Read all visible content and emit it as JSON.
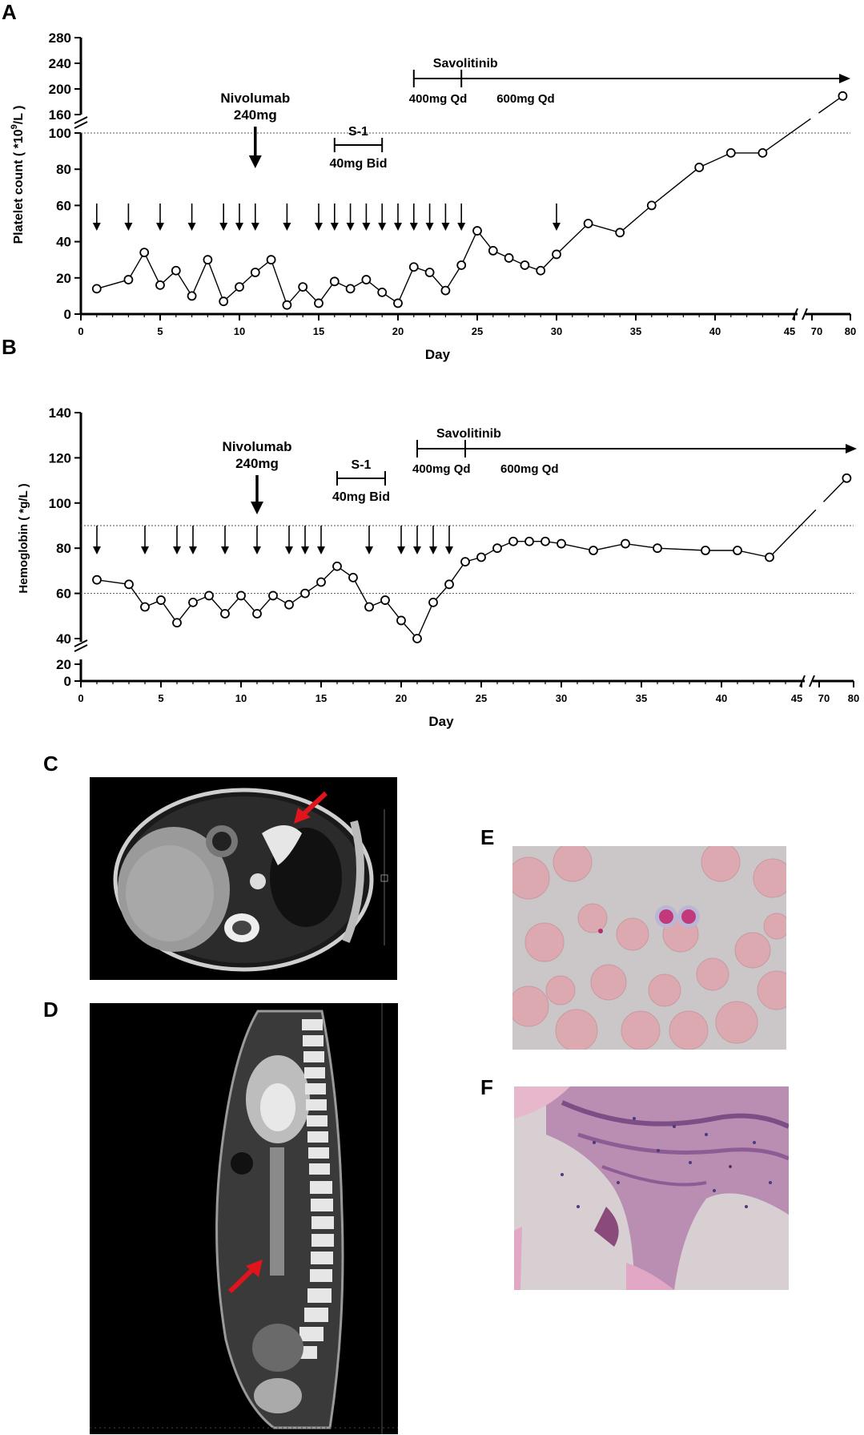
{
  "panels": {
    "a": "A",
    "b": "B",
    "c": "C",
    "d": "D",
    "e": "E",
    "f": "F"
  },
  "icons": {
    "ct_axial": "ct-axial-scan-image",
    "ct_sagittal": "ct-sagittal-scan-image",
    "blood_smear": "blood-smear-micrograph",
    "histology": "histology-micrograph",
    "arrow_color": "#e0141c"
  },
  "chart_data": [
    {
      "type": "line",
      "ylabel_main": "Platelet count ( *10",
      "ylabel_sup": "9",
      "ylabel_end": "/L )",
      "xlabel": "Day",
      "xlim": [
        0,
        80
      ],
      "x_axis_break": "45 // 70",
      "x_ticks": [
        "0",
        "5",
        "10",
        "15",
        "20",
        "25",
        "30",
        "35",
        "40",
        "45",
        "70",
        "80"
      ],
      "ylim_lower": [
        0,
        100
      ],
      "ylim_upper": [
        160,
        280
      ],
      "y_ticks_lower": [
        "0",
        "20",
        "40",
        "60",
        "80",
        "100"
      ],
      "y_ticks_upper": [
        "160",
        "200",
        "240",
        "280"
      ],
      "reference_lines": [
        100
      ],
      "series": [
        {
          "x": [
            1,
            3,
            4,
            5,
            6,
            7,
            8,
            9,
            10,
            11,
            12,
            13,
            14,
            15,
            16,
            17,
            18,
            19,
            20,
            21,
            22,
            23,
            24,
            25,
            26,
            27,
            28,
            29,
            30,
            32,
            34,
            36,
            39,
            41,
            43,
            78
          ],
          "y": [
            14,
            19,
            34,
            16,
            24,
            10,
            30,
            7,
            15,
            23,
            30,
            5,
            15,
            6,
            18,
            14,
            19,
            12,
            6,
            26,
            23,
            13,
            27,
            46,
            35,
            31,
            27,
            24,
            33,
            50,
            45,
            60,
            81,
            89,
            89,
            189
          ]
        }
      ],
      "transfusion_days": [
        1,
        3,
        5,
        7,
        9,
        10,
        11,
        13,
        15,
        16,
        17,
        18,
        19,
        20,
        21,
        22,
        23,
        24,
        30
      ],
      "annotations": {
        "nivolumab": {
          "label1": "Nivolumab",
          "label2": "240mg",
          "day": 11
        },
        "s1": {
          "label1": "S-1",
          "label2": "40mg Bid",
          "start": 16,
          "end": 19
        },
        "savolitinib": {
          "label": "Savolitinib",
          "start": 21,
          "switch": 24,
          "dose1": "400mg Qd",
          "dose2": "600mg Qd"
        }
      }
    },
    {
      "type": "line",
      "ylabel": "Hemoglobin ( *g/L )",
      "xlabel": "Day",
      "xlim": [
        0,
        80
      ],
      "x_axis_break": "45 // 70",
      "x_ticks": [
        "0",
        "5",
        "10",
        "15",
        "20",
        "25",
        "30",
        "35",
        "40",
        "45",
        "70",
        "80"
      ],
      "ylim_lower": [
        0,
        20
      ],
      "ylim_upper": [
        40,
        140
      ],
      "y_ticks_lower": [
        "0",
        "20"
      ],
      "y_ticks_upper": [
        "40",
        "60",
        "80",
        "100",
        "120",
        "140"
      ],
      "reference_lines": [
        60,
        90
      ],
      "series": [
        {
          "x": [
            1,
            3,
            4,
            5,
            6,
            7,
            8,
            9,
            10,
            11,
            12,
            13,
            14,
            15,
            16,
            17,
            18,
            19,
            20,
            21,
            22,
            23,
            24,
            25,
            26,
            27,
            28,
            29,
            30,
            32,
            34,
            36,
            39,
            41,
            43,
            78
          ],
          "y": [
            66,
            64,
            54,
            57,
            47,
            56,
            59,
            51,
            59,
            51,
            59,
            55,
            60,
            65,
            72,
            67,
            54,
            57,
            48,
            40,
            56,
            64,
            74,
            76,
            80,
            83,
            83,
            83,
            82,
            79,
            82,
            80,
            79,
            79,
            76,
            111
          ]
        }
      ],
      "transfusion_days": [
        1,
        4,
        6,
        7,
        9,
        11,
        13,
        14,
        15,
        18,
        20,
        21,
        22,
        23
      ],
      "annotations": {
        "nivolumab": {
          "label1": "Nivolumab",
          "label2": "240mg",
          "day": 11
        },
        "s1": {
          "label1": "S-1",
          "label2": "40mg Bid",
          "start": 16,
          "end": 19
        },
        "savolitinib": {
          "label": "Savolitinib",
          "start": 21,
          "switch": 24,
          "dose1": "400mg Qd",
          "dose2": "600mg Qd"
        }
      }
    }
  ]
}
